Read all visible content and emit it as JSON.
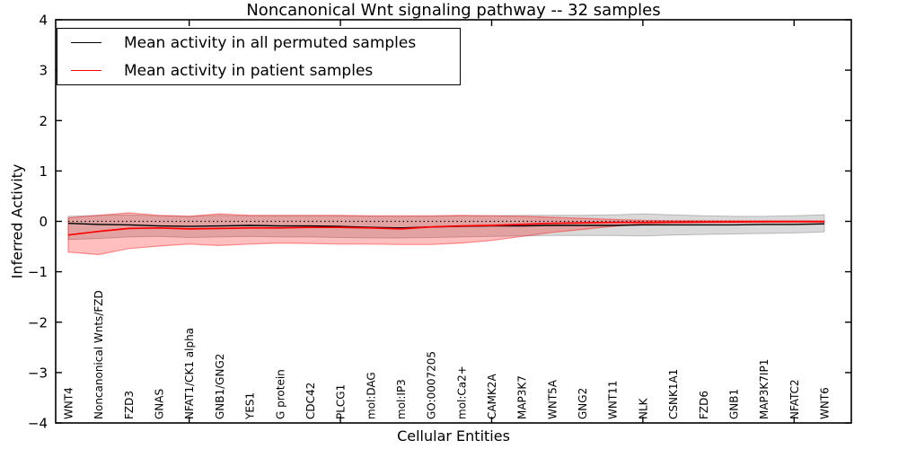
{
  "chart_data": {
    "type": "line",
    "title": "Noncanonical Wnt signaling pathway -- 32 samples",
    "xlabel": "Cellular Entities",
    "ylabel": "Inferred Activity",
    "ylim": [
      -4,
      4
    ],
    "grid": false,
    "legend_position": "upper left",
    "y_ticks": [
      -4,
      -3,
      -2,
      -1,
      0,
      1,
      2,
      3,
      4
    ],
    "y_tick_labels": [
      "−4",
      "−3",
      "−2",
      "−1",
      "0",
      "1",
      "2",
      "3",
      "4"
    ],
    "x_major_ticks": [
      5,
      10,
      15,
      20,
      25
    ],
    "zero_reference_line": 0,
    "categories": [
      "WNT4",
      "Noncanonical Wnts/FZD",
      "FZD3",
      "GNAS",
      "NFAT1/CK1 alpha",
      "GNB1/GNG2",
      "YES1",
      "G protein",
      "CDC42",
      "PLCG1",
      "mol:DAG",
      "mol:IP3",
      "GO:0007205",
      "mol:Ca2+",
      "CAMK2A",
      "MAP3K7",
      "WNT5A",
      "GNG2",
      "WNT11",
      "NLK",
      "CSNK1A1",
      "FZD6",
      "GNB1",
      "MAP3K7IP1",
      "NFATC2",
      "WNT6"
    ],
    "series": [
      {
        "name": "Mean activity in all permuted samples",
        "color": "#000000",
        "values": [
          -0.04,
          -0.06,
          -0.07,
          -0.09,
          -0.1,
          -0.09,
          -0.08,
          -0.09,
          -0.09,
          -0.1,
          -0.12,
          -0.13,
          -0.11,
          -0.1,
          -0.09,
          -0.09,
          -0.08,
          -0.08,
          -0.08,
          -0.07,
          -0.07,
          -0.07,
          -0.07,
          -0.06,
          -0.06,
          -0.05
        ]
      },
      {
        "name": "Mean activity in patient samples",
        "color": "#ff0000",
        "values": [
          -0.27,
          -0.2,
          -0.14,
          -0.13,
          -0.15,
          -0.14,
          -0.13,
          -0.13,
          -0.12,
          -0.12,
          -0.13,
          -0.15,
          -0.11,
          -0.09,
          -0.08,
          -0.06,
          -0.04,
          -0.03,
          -0.02,
          -0.02,
          -0.015,
          -0.012,
          -0.01,
          -0.008,
          -0.006,
          -0.005
        ]
      }
    ],
    "bands": [
      {
        "name": "permuted samples std band",
        "fill": "rgba(128,128,128,0.30)",
        "edge": "rgba(110,110,110,0.40)",
        "upper": [
          0.1,
          0.12,
          0.13,
          0.11,
          0.1,
          0.12,
          0.11,
          0.11,
          0.11,
          0.11,
          0.1,
          0.1,
          0.1,
          0.11,
          0.11,
          0.12,
          0.12,
          0.12,
          0.13,
          0.15,
          0.13,
          0.11,
          0.1,
          0.1,
          0.11,
          0.13
        ],
        "lower": [
          -0.36,
          -0.34,
          -0.31,
          -0.3,
          -0.32,
          -0.31,
          -0.3,
          -0.31,
          -0.31,
          -0.32,
          -0.33,
          -0.33,
          -0.32,
          -0.31,
          -0.3,
          -0.29,
          -0.28,
          -0.28,
          -0.28,
          -0.29,
          -0.27,
          -0.26,
          -0.25,
          -0.24,
          -0.23,
          -0.21
        ]
      },
      {
        "name": "patient samples std band",
        "fill": "rgba(255,0,0,0.25)",
        "edge": "rgba(255,0,0,0.40)",
        "upper": [
          0.07,
          0.12,
          0.17,
          0.12,
          0.1,
          0.15,
          0.12,
          0.12,
          0.12,
          0.12,
          0.11,
          0.11,
          0.11,
          0.12,
          0.11,
          0.1,
          0.08,
          0.06,
          0.04,
          0.02,
          0.015,
          0.012,
          0.01,
          0.01,
          0.01,
          0.01
        ],
        "lower": [
          -0.61,
          -0.66,
          -0.54,
          -0.49,
          -0.45,
          -0.48,
          -0.45,
          -0.43,
          -0.44,
          -0.45,
          -0.45,
          -0.46,
          -0.46,
          -0.43,
          -0.38,
          -0.3,
          -0.22,
          -0.16,
          -0.1,
          -0.05,
          -0.035,
          -0.03,
          -0.025,
          -0.02,
          -0.02,
          -0.02
        ]
      }
    ]
  }
}
